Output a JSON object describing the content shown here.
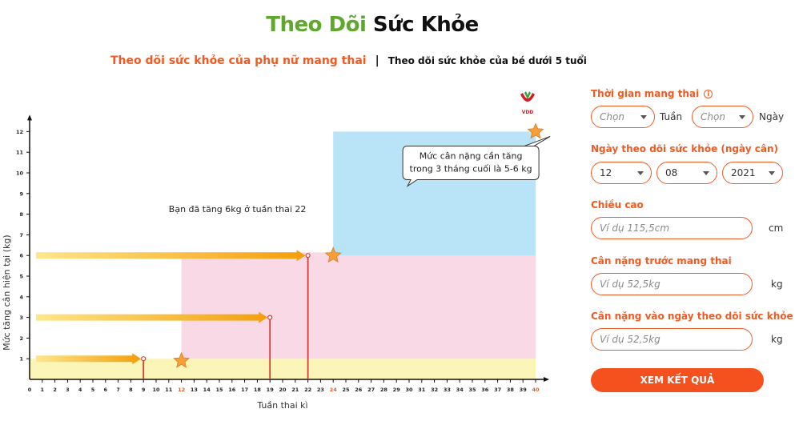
{
  "title": {
    "part_green": "Theo Dõi",
    "part_dark": "Sức Khỏe"
  },
  "tabs": {
    "active": "Theo dõi sức khỏe của phụ nữ mang thai",
    "separator": "|",
    "other": "Theo dõi sức khỏe của bé dưới 5 tuổi"
  },
  "logo": {
    "text": "VDD"
  },
  "chart_data": {
    "type": "line",
    "xlabel": "Tuần thai kì",
    "ylabel": "Mức tăng cân hiện tại (kg)",
    "x_ticks": [
      0,
      1,
      2,
      3,
      4,
      5,
      6,
      7,
      8,
      9,
      10,
      11,
      12,
      13,
      14,
      15,
      16,
      17,
      18,
      19,
      20,
      21,
      22,
      23,
      24,
      25,
      26,
      27,
      28,
      29,
      30,
      31,
      32,
      33,
      34,
      35,
      36,
      37,
      38,
      39,
      40
    ],
    "highlight_ticks": [
      12,
      24,
      40
    ],
    "y_ticks": [
      1,
      2,
      3,
      4,
      5,
      6,
      7,
      8,
      9,
      10,
      11,
      12
    ],
    "xlim": [
      0,
      40
    ],
    "ylim": [
      0,
      12
    ],
    "zones": [
      {
        "name": "yellow",
        "x": [
          0,
          40
        ],
        "y": [
          0,
          1
        ],
        "color": "#fbf5b8"
      },
      {
        "name": "pink",
        "x": [
          12,
          40
        ],
        "y": [
          1,
          6
        ],
        "color": "#f9d9e6"
      },
      {
        "name": "pink-early",
        "x": [
          12,
          40
        ],
        "y": [
          6,
          5.85
        ],
        "color": "#f9d9e6"
      },
      {
        "name": "blue",
        "x": [
          24,
          40
        ],
        "y": [
          6,
          12
        ],
        "color": "#b9e3f7"
      }
    ],
    "arrows": [
      {
        "week": 9,
        "kg": 1
      },
      {
        "week": 19,
        "kg": 3
      },
      {
        "week": 22,
        "kg": 6
      }
    ],
    "stars": [
      {
        "week": 12,
        "kg": 0.9
      },
      {
        "week": 24,
        "kg": 6
      },
      {
        "week": 40,
        "kg": 12
      }
    ],
    "annotation": "Bạn đã tăng 6kg ở tuần thai 22",
    "callout_lines": [
      "Mức cân nặng cần tăng",
      "trong 3 tháng cuối là 5-6 kg"
    ]
  },
  "form": {
    "pregnancy_time": {
      "label": "Thời gian mang thai",
      "info_icon": "i",
      "week_placeholder": "Chọn",
      "week_unit": "Tuần",
      "day_placeholder": "Chọn",
      "day_unit": "Ngày"
    },
    "track_date": {
      "label": "Ngày theo dõi sức khỏe (ngày cân)",
      "day": "12",
      "month": "08",
      "year": "2021"
    },
    "height": {
      "label": "Chiều cao",
      "placeholder": "Ví dụ 115,5cm",
      "unit": "cm"
    },
    "weight_before": {
      "label": "Cân nặng trước mang thai",
      "placeholder": "Ví dụ 52,5kg",
      "unit": "kg"
    },
    "weight_today": {
      "label": "Cân nặng vào ngày theo dõi sức khỏe",
      "placeholder": "Ví dụ 52,5kg",
      "unit": "kg"
    },
    "submit_label": "XEM KẾT QUẢ"
  },
  "colors": {
    "accent": "#f15a22",
    "green": "#5ea82c",
    "button": "#f4511e"
  }
}
